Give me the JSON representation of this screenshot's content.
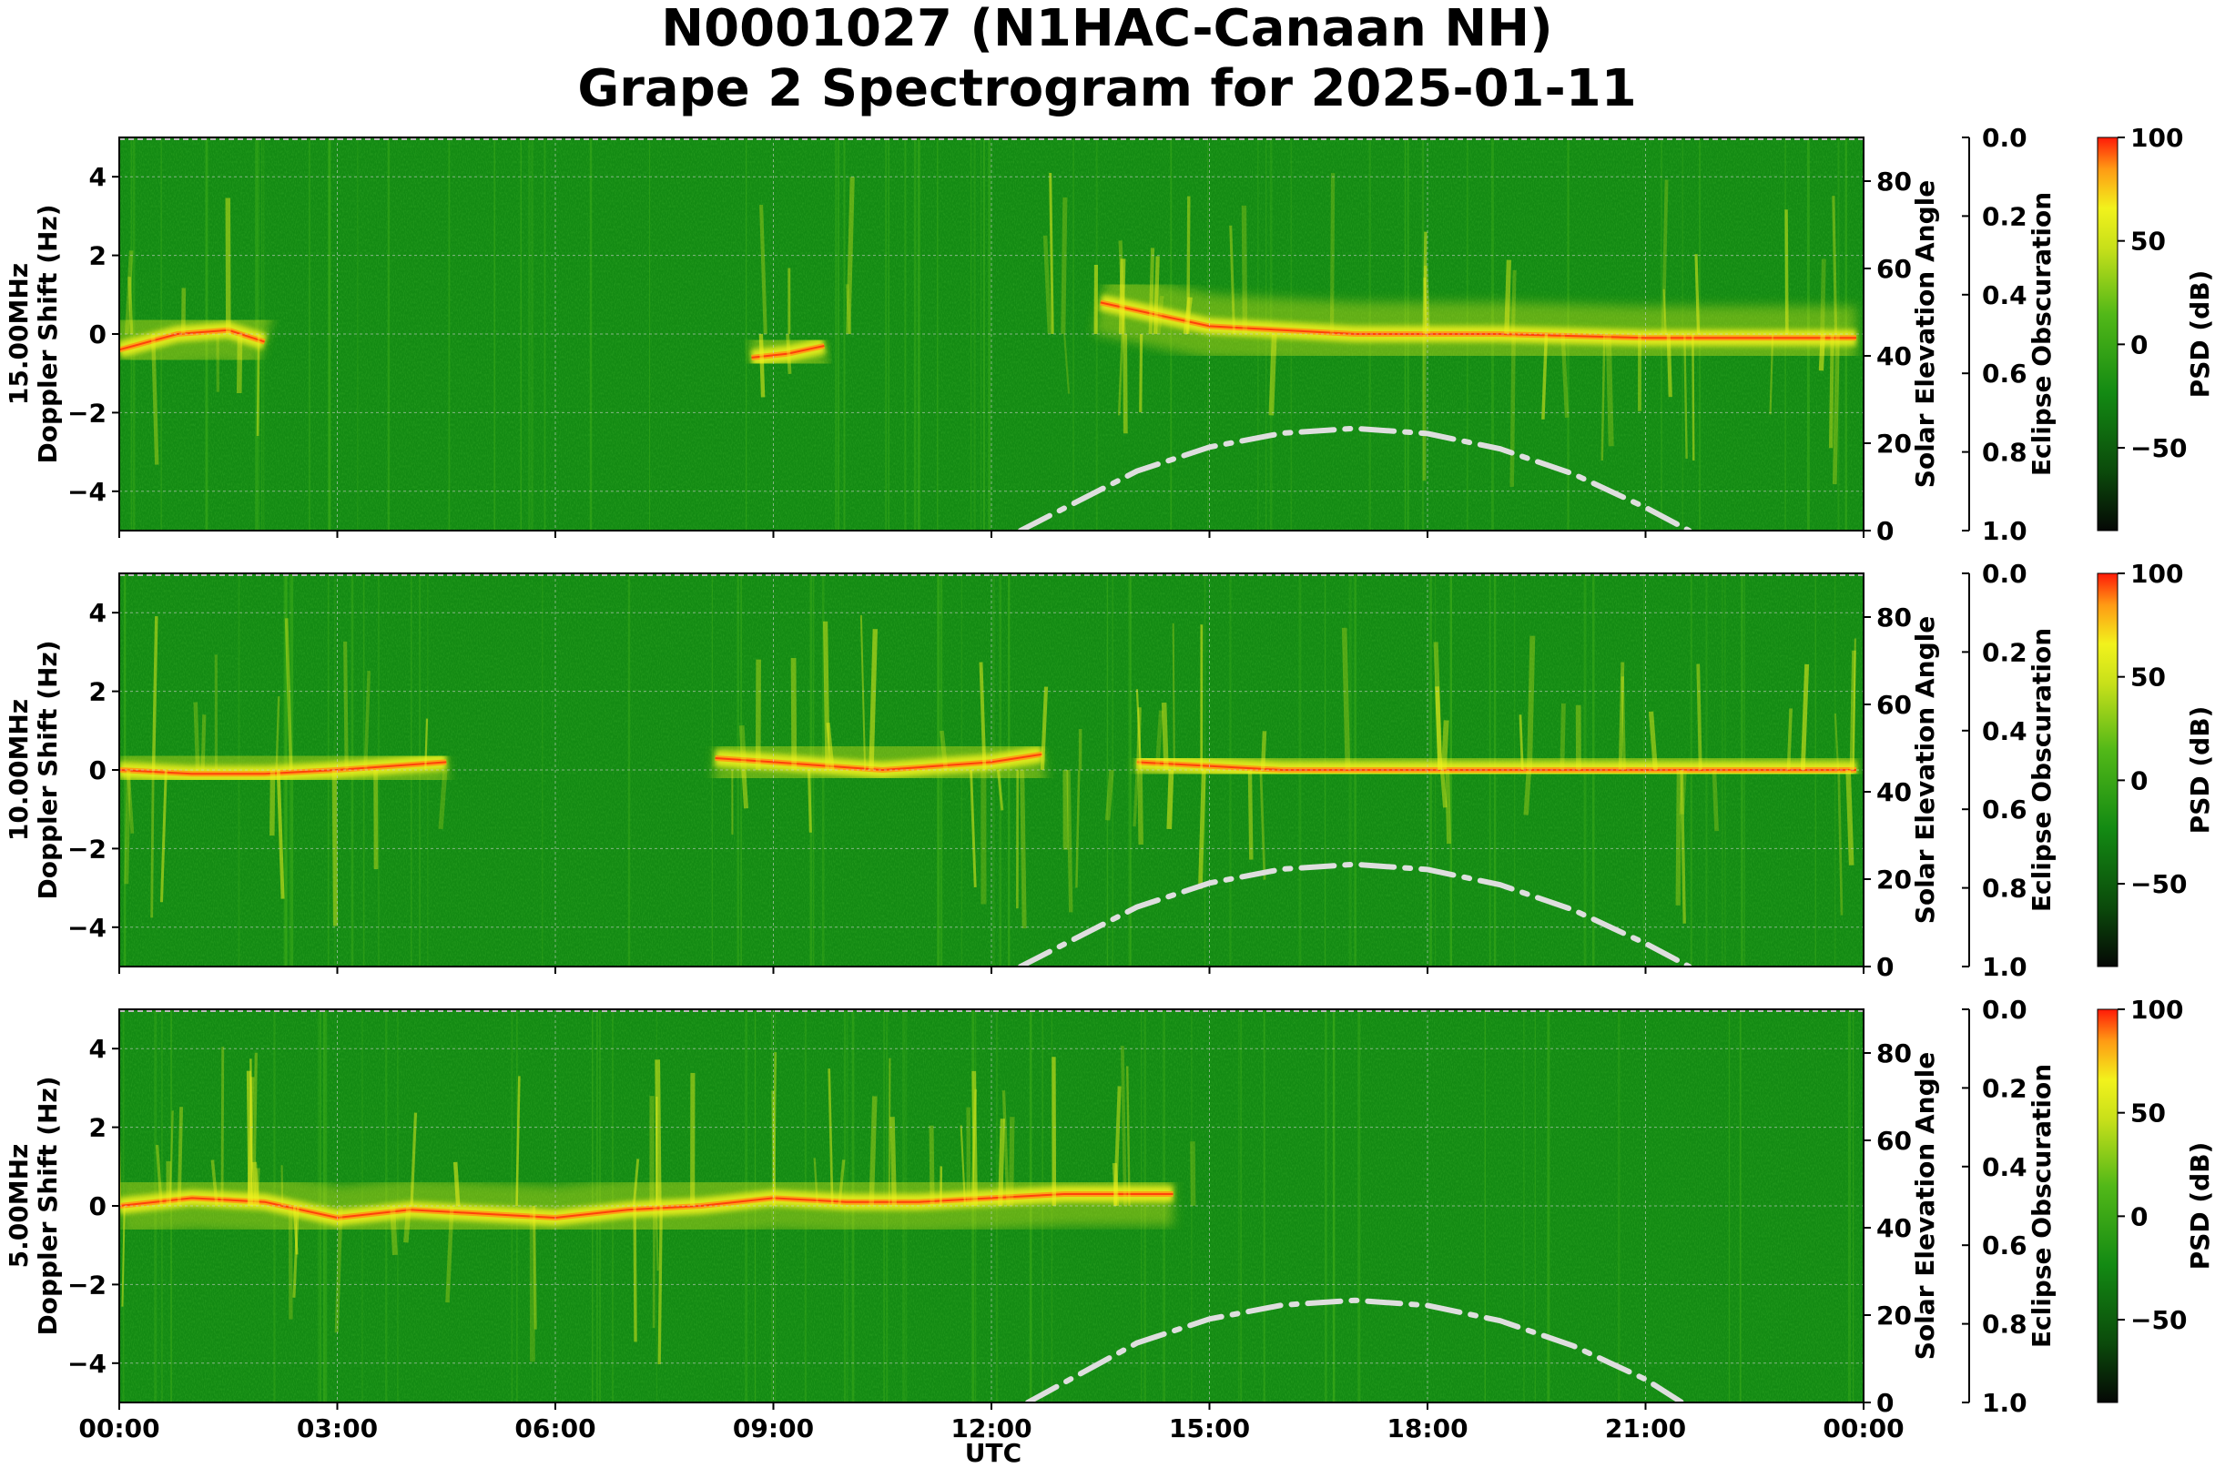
{
  "title": {
    "line1": "N0001027 (N1HAC-Canaan NH)",
    "line2": "Grape 2 Spectrogram for 2025-01-11"
  },
  "colors": {
    "background_green": "#138a13",
    "mid_green": "#3fae18",
    "yellow": "#f2f21c",
    "orange": "#ff9a14",
    "red": "#ff1a08",
    "sun_curve": "#dedede",
    "grid": "#d0d0d0"
  },
  "chart_data": [
    {
      "type": "heatmap",
      "series_name": "15.00MHz",
      "ylabel_primary": "15.00MHz",
      "ylabel_secondary": "Doppler Shift (Hz)",
      "y2label": "Solar Elevation Angle",
      "y3label": "Eclipse Obscuration",
      "colorbar_label": "PSD (dB)",
      "xlim": [
        "00:00",
        "00:00"
      ],
      "ylim": [
        -5,
        5
      ],
      "y2lim": [
        0,
        90
      ],
      "y3lim": [
        1.0,
        0.0
      ],
      "colorbar_range": [
        -90,
        100
      ],
      "grid": true,
      "doppler_trace_hz": [
        [
          0.0,
          -0.4
        ],
        [
          0.8,
          0.0
        ],
        [
          1.5,
          0.1
        ],
        [
          2.0,
          -0.2
        ],
        [
          8.7,
          -0.6
        ],
        [
          9.2,
          -0.5
        ],
        [
          9.7,
          -0.3
        ],
        [
          13.5,
          0.8
        ],
        [
          14.0,
          0.6
        ],
        [
          15.0,
          0.2
        ],
        [
          17.0,
          0.0
        ],
        [
          19.0,
          0.0
        ],
        [
          21.0,
          -0.1
        ],
        [
          23.9,
          -0.1
        ]
      ],
      "trace_hours": [
        [
          0.0,
          2.0
        ],
        [
          8.7,
          10.2
        ],
        [
          12.8,
          24.0
        ]
      ],
      "solar_elevation_deg": [
        [
          12.4,
          0
        ],
        [
          14,
          13.6
        ],
        [
          15,
          19.1
        ],
        [
          16,
          22.3
        ],
        [
          17,
          23.4
        ],
        [
          18,
          22.2
        ],
        [
          19,
          18.7
        ],
        [
          20,
          13.0
        ],
        [
          21,
          5.3
        ],
        [
          21.6,
          0
        ]
      ]
    },
    {
      "type": "heatmap",
      "series_name": "10.00MHz",
      "ylabel_primary": "10.00MHz",
      "ylabel_secondary": "Doppler Shift (Hz)",
      "y2label": "Solar Elevation Angle",
      "y3label": "Eclipse Obscuration",
      "colorbar_label": "PSD (dB)",
      "xlim": [
        "00:00",
        "00:00"
      ],
      "ylim": [
        -5,
        5
      ],
      "y2lim": [
        0,
        90
      ],
      "y3lim": [
        1.0,
        0.0
      ],
      "colorbar_range": [
        -90,
        100
      ],
      "grid": true,
      "doppler_trace_hz": [
        [
          0.0,
          0.0
        ],
        [
          1.0,
          -0.1
        ],
        [
          2.0,
          -0.1
        ],
        [
          3.0,
          0.0
        ],
        [
          4.5,
          0.2
        ],
        [
          8.2,
          0.3
        ],
        [
          9.0,
          0.2
        ],
        [
          10.5,
          0.0
        ],
        [
          12.0,
          0.2
        ],
        [
          12.7,
          0.4
        ],
        [
          14.0,
          0.2
        ],
        [
          16.0,
          0.0
        ],
        [
          23.9,
          0.0
        ]
      ],
      "trace_hours": [
        [
          0.0,
          4.6
        ],
        [
          8.1,
          12.8
        ],
        [
          12.8,
          24.0
        ]
      ],
      "solar_elevation_deg": [
        [
          12.4,
          0
        ],
        [
          14,
          13.6
        ],
        [
          15,
          19.1
        ],
        [
          16,
          22.3
        ],
        [
          17,
          23.4
        ],
        [
          18,
          22.2
        ],
        [
          19,
          18.7
        ],
        [
          20,
          13.0
        ],
        [
          21,
          5.3
        ],
        [
          21.6,
          0
        ]
      ]
    },
    {
      "type": "heatmap",
      "series_name": "5.00MHz",
      "ylabel_primary": "5.00MHz",
      "ylabel_secondary": "Doppler Shift (Hz)",
      "y2label": "Solar Elevation Angle",
      "y3label": "Eclipse Obscuration",
      "colorbar_label": "PSD (dB)",
      "xlabel": "UTC",
      "xlim": [
        "00:00",
        "00:00"
      ],
      "ylim": [
        -5,
        5
      ],
      "y2lim": [
        0,
        90
      ],
      "y3lim": [
        1.0,
        0.0
      ],
      "colorbar_range": [
        -90,
        100
      ],
      "grid": true,
      "doppler_trace_hz": [
        [
          0.0,
          0.0
        ],
        [
          1.0,
          0.2
        ],
        [
          2.0,
          0.1
        ],
        [
          3.0,
          -0.3
        ],
        [
          4.0,
          -0.1
        ],
        [
          5.0,
          -0.2
        ],
        [
          6.0,
          -0.3
        ],
        [
          7.0,
          -0.1
        ],
        [
          8.0,
          0.0
        ],
        [
          9.0,
          0.2
        ],
        [
          10.0,
          0.1
        ],
        [
          11.0,
          0.1
        ],
        [
          12.0,
          0.2
        ],
        [
          13.0,
          0.3
        ],
        [
          14.5,
          0.3
        ],
        [
          16.0,
          0.0
        ],
        [
          23.9,
          0.0
        ]
      ],
      "trace_hours": [
        [
          0.0,
          14.8
        ]
      ],
      "solar_elevation_deg": [
        [
          12.5,
          0
        ],
        [
          14,
          13.6
        ],
        [
          15,
          19.1
        ],
        [
          16,
          22.3
        ],
        [
          17,
          23.4
        ],
        [
          18,
          22.2
        ],
        [
          19,
          18.7
        ],
        [
          20,
          13.0
        ],
        [
          21,
          5.3
        ],
        [
          21.5,
          0
        ]
      ]
    }
  ],
  "x_ticks": [
    "00:00",
    "03:00",
    "06:00",
    "09:00",
    "12:00",
    "15:00",
    "18:00",
    "21:00",
    "00:00"
  ],
  "y_ticks": [
    "4",
    "2",
    "0",
    "−2",
    "−4"
  ],
  "y2_ticks": [
    "80",
    "60",
    "40",
    "20",
    "0"
  ],
  "y3_ticks": [
    "0.0",
    "0.2",
    "0.4",
    "0.6",
    "0.8",
    "1.0"
  ],
  "colorbar_ticks": [
    "100",
    "50",
    "0",
    "−50"
  ]
}
